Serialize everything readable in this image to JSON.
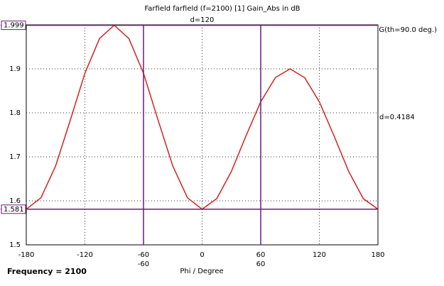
{
  "chart_data": {
    "type": "line",
    "title": "Farfield farfield (f=2100) [1] Gain_Abs in dB",
    "x_label": "Phi / Degree",
    "footer": "Frequency = 2100",
    "x": [
      -180,
      -165,
      -150,
      -135,
      -120,
      -105,
      -90,
      -75,
      -60,
      -45,
      -30,
      -15,
      0,
      15,
      30,
      45,
      60,
      75,
      90,
      105,
      120,
      135,
      150,
      165,
      180
    ],
    "series": [
      {
        "name": "G(th=90.0 deg.)",
        "color": "#d42020",
        "values": [
          1.581,
          1.607,
          1.679,
          1.783,
          1.89,
          1.969,
          1.999,
          1.969,
          1.89,
          1.783,
          1.679,
          1.607,
          1.581,
          1.605,
          1.667,
          1.748,
          1.825,
          1.88,
          1.9,
          1.88,
          1.825,
          1.748,
          1.667,
          1.605,
          1.581
        ]
      }
    ],
    "xlim": [
      -180,
      180
    ],
    "xticks": [
      -180,
      -120,
      -60,
      0,
      60,
      120,
      180
    ],
    "ylim": [
      1.5,
      2.0
    ],
    "yticks": [
      1.5,
      1.6,
      1.7,
      1.8,
      1.9
    ],
    "grid": true,
    "marker_color": "#6a1b7a",
    "marker_label_color": "#a0306a",
    "x_markers": [
      -60,
      60
    ],
    "x_marker_delta": "d=120",
    "y_markers": [
      1.999,
      1.581
    ],
    "y_marker_delta": "d=0.4184"
  }
}
